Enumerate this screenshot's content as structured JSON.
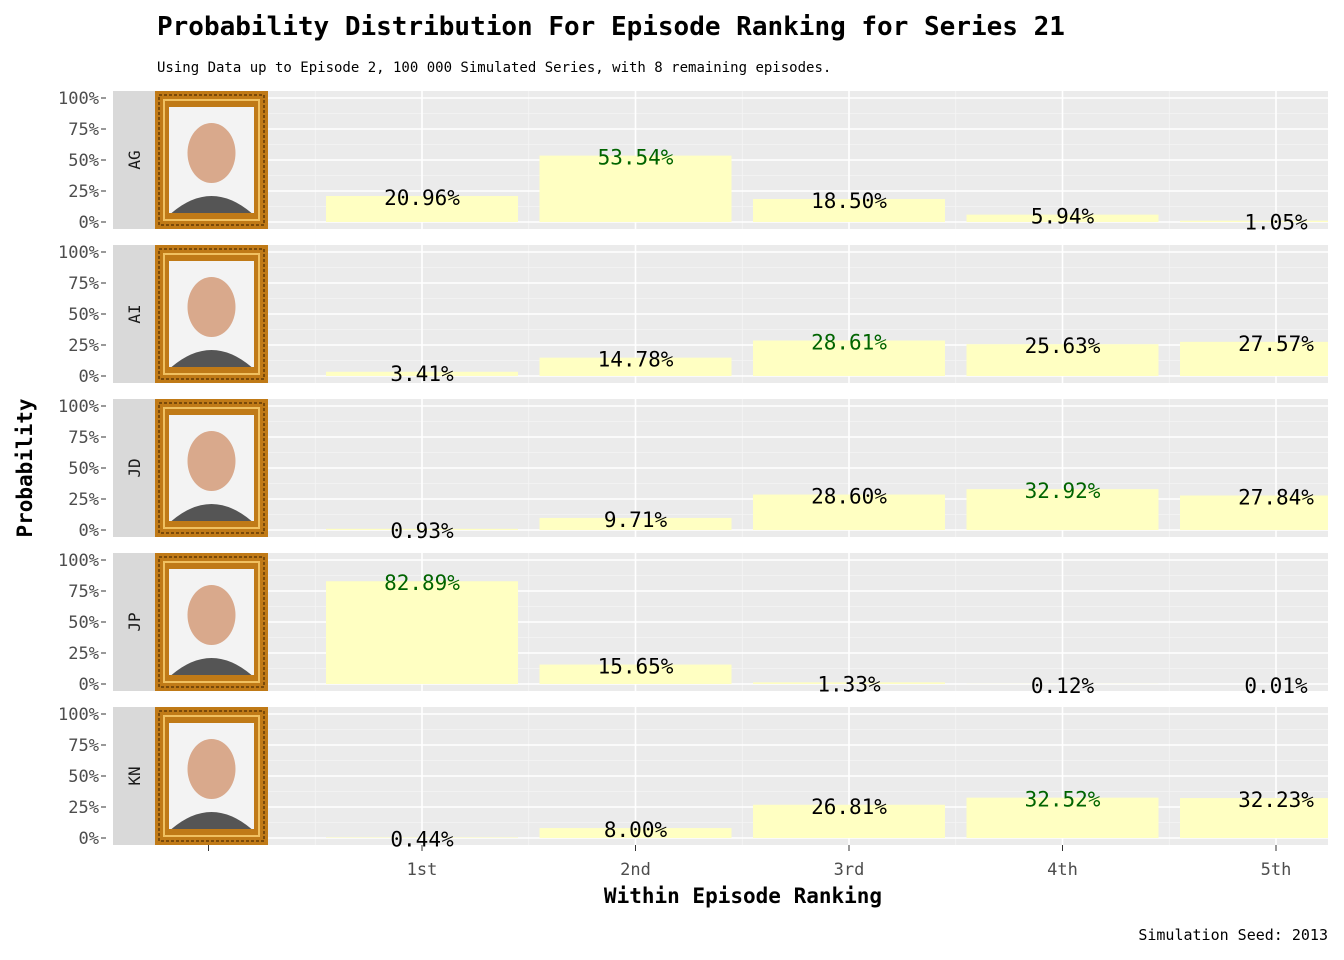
{
  "chart_data": {
    "type": "bar",
    "title": "Probability Distribution For Episode Ranking for Series 21",
    "subtitle": "Using Data up to Episode 2, 100 000 Simulated Series, with 8 remaining episodes.",
    "xlabel": "Within Episode Ranking",
    "ylabel": "Probability",
    "caption": "Simulation Seed: 2013",
    "categories": [
      "1st",
      "2nd",
      "3rd",
      "4th",
      "5th"
    ],
    "y_ticks": [
      "0%",
      "25%",
      "50%",
      "75%",
      "100%"
    ],
    "ylim": [
      0,
      1
    ],
    "grid": true,
    "bar_color": "#ffffc2",
    "label_color": "#000000",
    "highlight_color": "#006400",
    "panel_background": "#ebebeb",
    "strip_background": "#d9d9d9",
    "frame_color": "#c07a17",
    "series": [
      {
        "name": "AG",
        "values": [
          0.2096,
          0.5354,
          0.185,
          0.0594,
          0.0105
        ],
        "labels": [
          "20.96%",
          "53.54%",
          "18.50%",
          "5.94%",
          "1.05%"
        ],
        "highlight": 1
      },
      {
        "name": "AI",
        "values": [
          0.0341,
          0.1478,
          0.2861,
          0.2563,
          0.2757
        ],
        "labels": [
          "3.41%",
          "14.78%",
          "28.61%",
          "25.63%",
          "27.57%"
        ],
        "highlight": 2
      },
      {
        "name": "JD",
        "values": [
          0.0093,
          0.0971,
          0.286,
          0.3292,
          0.2784
        ],
        "labels": [
          "0.93%",
          "9.71%",
          "28.60%",
          "32.92%",
          "27.84%"
        ],
        "highlight": 3
      },
      {
        "name": "JP",
        "values": [
          0.8289,
          0.1565,
          0.0133,
          0.0012,
          0.0001
        ],
        "labels": [
          "82.89%",
          "15.65%",
          "1.33%",
          "0.12%",
          "0.01%"
        ],
        "highlight": 0
      },
      {
        "name": "KN",
        "values": [
          0.0044,
          0.08,
          0.2681,
          0.3252,
          0.3223
        ],
        "labels": [
          "0.44%",
          "8.00%",
          "26.81%",
          "32.52%",
          "32.23%"
        ],
        "highlight": 3
      }
    ]
  }
}
